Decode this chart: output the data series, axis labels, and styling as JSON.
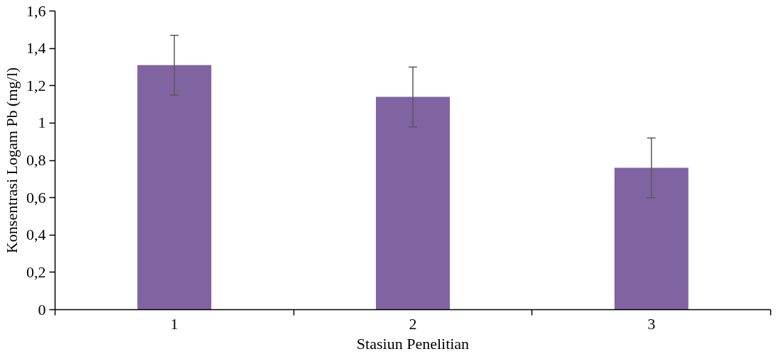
{
  "chart_data": {
    "type": "bar",
    "xlabel": "Stasiun Penelitian",
    "ylabel": "Konsentrasi Logam Pb (mg/l)",
    "categories": [
      "1",
      "2",
      "3"
    ],
    "values": [
      1.31,
      1.14,
      0.76
    ],
    "errors": [
      0.16,
      0.16,
      0.16
    ],
    "color": "#8064a2",
    "ylim": [
      0,
      1.6
    ],
    "yticks": [
      0,
      {
        "value": 0.2,
        "label": "0,2"
      },
      {
        "value": 0.4,
        "label": "0,4"
      },
      {
        "value": 0.6,
        "label": "0,6"
      },
      {
        "value": 0.8,
        "label": "0,8"
      },
      1,
      {
        "value": 1.2,
        "label": "1,2"
      },
      {
        "value": 1.4,
        "label": "1,4"
      },
      {
        "value": 1.6,
        "label": "1,6"
      }
    ],
    "grid": false
  }
}
